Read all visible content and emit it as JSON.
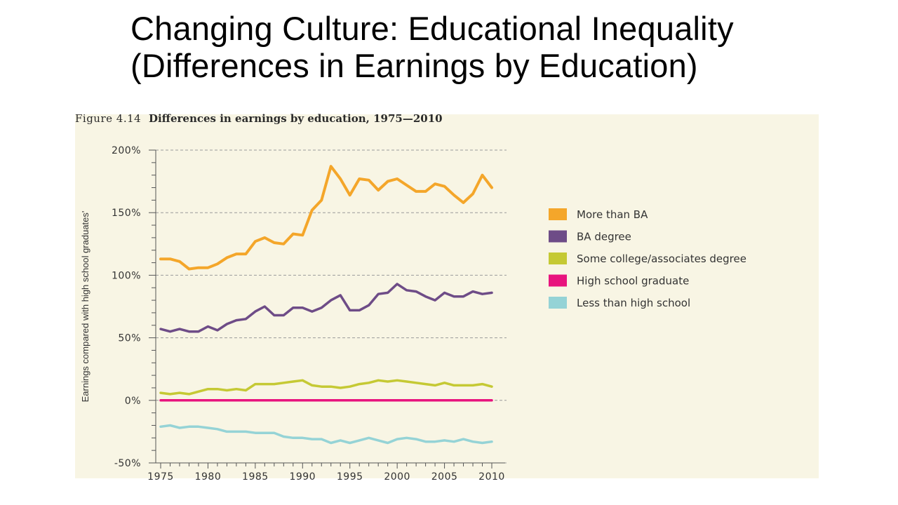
{
  "slide": {
    "title": "Changing Culture: Educational Inequality (Differences in Earnings by Education)"
  },
  "figure": {
    "number": "Figure 4.14",
    "title": "Differences in earnings by education, 1975—2010"
  },
  "chart_data": {
    "type": "line",
    "title": "Differences in earnings by education, 1975—2010",
    "xlabel": "",
    "ylabel": "Earnings compared with high school graduates'",
    "xlim": [
      1975,
      2010
    ],
    "ylim": [
      -50,
      200
    ],
    "x_ticks": [
      "1975",
      "1980",
      "1985",
      "1990",
      "1995",
      "2000",
      "2005",
      "2010"
    ],
    "y_ticks": [
      "200%",
      "150%",
      "100%",
      "50%",
      "0%",
      "-50%"
    ],
    "y_tick_values": [
      200,
      150,
      100,
      50,
      0,
      -50
    ],
    "grid": "horizontal dashed",
    "legend_position": "right",
    "x": [
      1975,
      1976,
      1977,
      1978,
      1979,
      1980,
      1981,
      1982,
      1983,
      1984,
      1985,
      1986,
      1987,
      1988,
      1989,
      1990,
      1991,
      1992,
      1993,
      1994,
      1995,
      1996,
      1997,
      1998,
      1999,
      2000,
      2001,
      2002,
      2003,
      2004,
      2005,
      2006,
      2007,
      2008,
      2009,
      2010
    ],
    "series": [
      {
        "name": "More than BA",
        "color": "#f4a62a",
        "values": [
          113,
          113,
          111,
          105,
          106,
          106,
          109,
          114,
          117,
          117,
          127,
          130,
          126,
          125,
          133,
          132,
          152,
          160,
          187,
          177,
          164,
          177,
          176,
          168,
          175,
          177,
          172,
          167,
          167,
          173,
          171,
          164,
          158,
          165,
          180,
          170
        ]
      },
      {
        "name": "BA degree",
        "color": "#6e4c87",
        "values": [
          57,
          55,
          57,
          55,
          55,
          59,
          56,
          61,
          64,
          65,
          71,
          75,
          68,
          68,
          74,
          74,
          71,
          74,
          80,
          84,
          72,
          72,
          76,
          85,
          86,
          93,
          88,
          87,
          83,
          80,
          86,
          83,
          83,
          87,
          85,
          86
        ]
      },
      {
        "name": "Some college/associates degree",
        "color": "#c5c934",
        "values": [
          6,
          5,
          6,
          5,
          7,
          9,
          9,
          8,
          9,
          8,
          13,
          13,
          13,
          14,
          15,
          16,
          12,
          11,
          11,
          10,
          11,
          13,
          14,
          16,
          15,
          16,
          15,
          14,
          13,
          12,
          14,
          12,
          12,
          12,
          13,
          11
        ]
      },
      {
        "name": "High school graduate",
        "color": "#e8147e",
        "values": [
          0,
          0,
          0,
          0,
          0,
          0,
          0,
          0,
          0,
          0,
          0,
          0,
          0,
          0,
          0,
          0,
          0,
          0,
          0,
          0,
          0,
          0,
          0,
          0,
          0,
          0,
          0,
          0,
          0,
          0,
          0,
          0,
          0,
          0,
          0,
          0
        ]
      },
      {
        "name": "Less than high school",
        "color": "#95d3d6",
        "values": [
          -21,
          -20,
          -22,
          -21,
          -21,
          -22,
          -23,
          -25,
          -25,
          -25,
          -26,
          -26,
          -26,
          -29,
          -30,
          -30,
          -31,
          -31,
          -34,
          -32,
          -34,
          -32,
          -30,
          -32,
          -34,
          -31,
          -30,
          -31,
          -33,
          -33,
          -32,
          -33,
          -31,
          -33,
          -34,
          -33
        ]
      }
    ]
  }
}
